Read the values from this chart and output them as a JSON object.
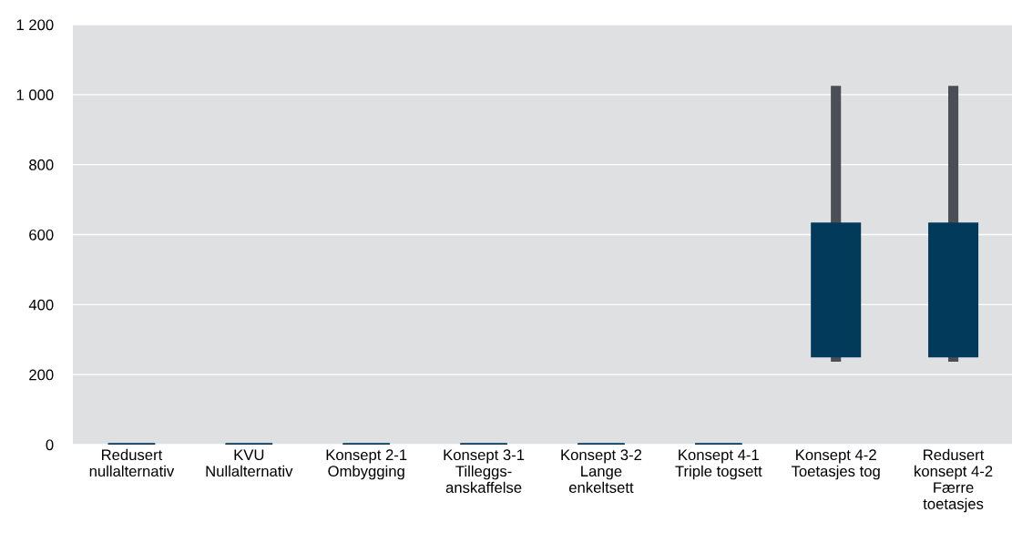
{
  "chart_data": {
    "type": "box",
    "categories": [
      "Redusert\nnullalternativ",
      "KVU\nNullalternativ",
      "Konsept 2-1\nOmbygging",
      "Konsept 3-1\nTilleggs-\nanskaffelse",
      "Konsept 3-2\nLange\nenkeltsett",
      "Konsept 4-1\nTriple togsett",
      "Konsept 4-2\nToetasjes tog",
      "Redusert\nkonsept 4-2\nFærre\ntoetasjes"
    ],
    "boxes": [
      {
        "low": 0,
        "q1": 0,
        "median": 0,
        "q3": 0,
        "high": 0
      },
      {
        "low": 0,
        "q1": 0,
        "median": 0,
        "q3": 0,
        "high": 0
      },
      {
        "low": 0,
        "q1": 0,
        "median": 0,
        "q3": 0,
        "high": 0
      },
      {
        "low": 0,
        "q1": 0,
        "median": 0,
        "q3": 0,
        "high": 0
      },
      {
        "low": 0,
        "q1": 0,
        "median": 0,
        "q3": 0,
        "high": 0
      },
      {
        "low": 0,
        "q1": 0,
        "median": 0,
        "q3": 0,
        "high": 0
      },
      {
        "low": 237,
        "q1": 254,
        "median": 254,
        "q3": 630,
        "high": 1025
      },
      {
        "low": 237,
        "q1": 254,
        "median": 254,
        "q3": 630,
        "high": 1025
      }
    ],
    "color": "#023a5c",
    "ylim": [
      0,
      1200
    ],
    "yticks": [
      0,
      200,
      400,
      600,
      800,
      {
        "value": 1000,
        "label": "1 000"
      },
      {
        "value": 1200,
        "label": "1 200"
      }
    ],
    "grid": "y"
  }
}
